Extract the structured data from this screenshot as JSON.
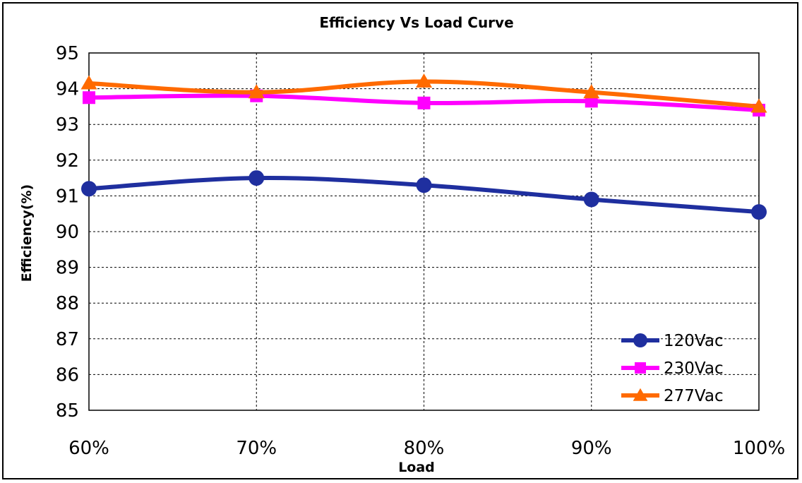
{
  "chart_data": {
    "type": "line",
    "title": "Efficiency Vs Load Curve",
    "xlabel": "Load",
    "ylabel": "Efficiency(%)",
    "categories": [
      "60%",
      "70%",
      "80%",
      "90%",
      "100%"
    ],
    "ylim": [
      85,
      95
    ],
    "yticks": [
      85,
      86,
      87,
      88,
      89,
      90,
      91,
      92,
      93,
      94,
      95
    ],
    "grid": true,
    "legend_position": "bottom-right",
    "series": [
      {
        "name": "120Vac",
        "values": [
          91.2,
          91.5,
          91.3,
          90.9,
          90.55
        ],
        "color": "#1f2f9f",
        "marker": "circle"
      },
      {
        "name": "230Vac",
        "values": [
          93.75,
          93.8,
          93.6,
          93.65,
          93.4
        ],
        "color": "#ff00ff",
        "marker": "square"
      },
      {
        "name": "277Vac",
        "values": [
          94.15,
          93.9,
          94.2,
          93.9,
          93.5
        ],
        "color": "#ff6a00",
        "marker": "triangle"
      }
    ]
  }
}
